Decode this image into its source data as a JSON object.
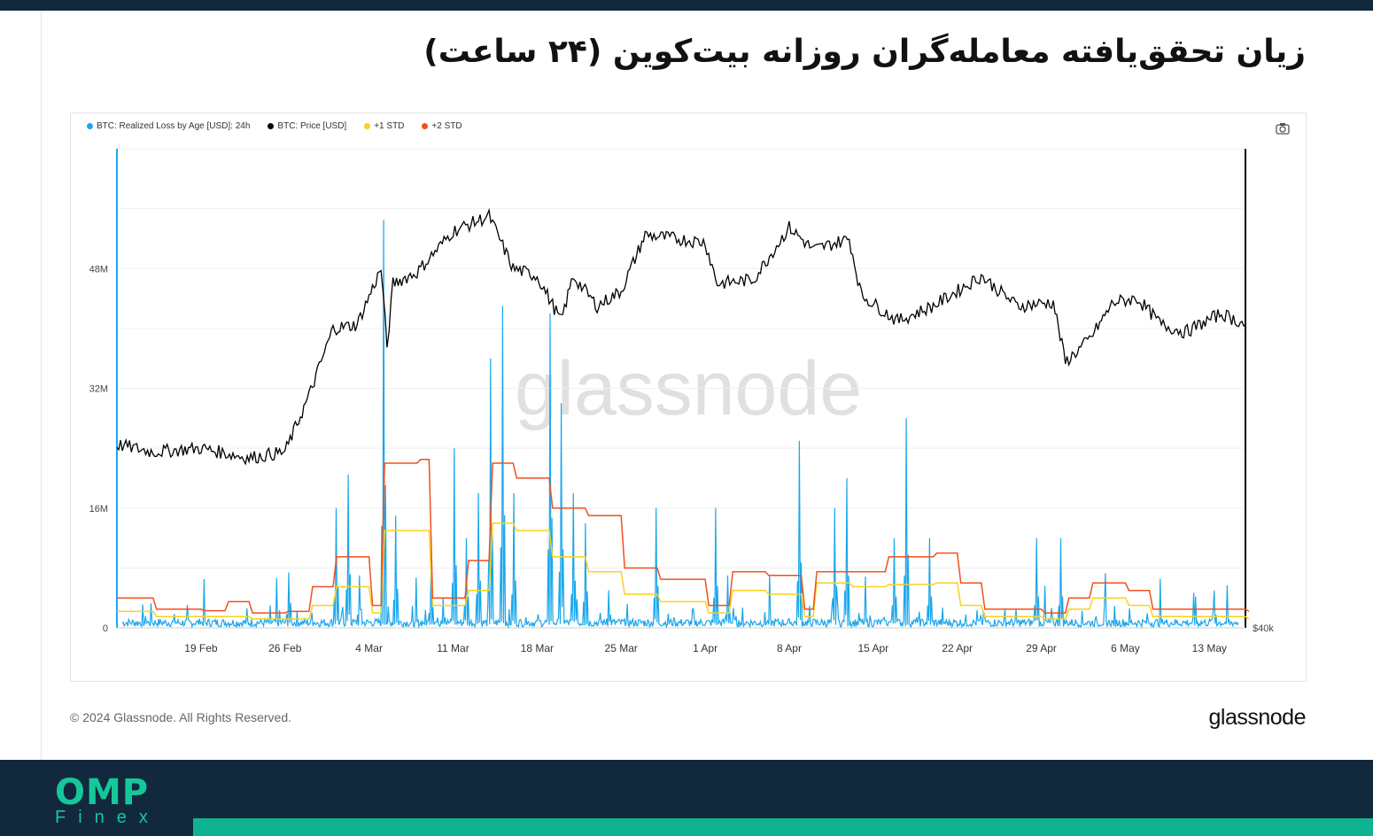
{
  "title": "زیان تحقق‌یافته معامله‌گران روزانه بیت‌کوین (۲۴ ساعت)",
  "copyright": "© 2024 Glassnode. All Rights Reserved.",
  "brand": "glassnode",
  "watermark": "glassnode",
  "logo": {
    "omp": "OMP",
    "finex": "Finex"
  },
  "colors": {
    "loss": "#1aa7ec",
    "price": "#000000",
    "std1": "#f7d21e",
    "std2": "#f0501e",
    "header": "#12293d",
    "accent": "#10b38f"
  },
  "legend": [
    {
      "label": "BTC: Realized Loss by Age [USD]: 24h",
      "color": "#1aa7ec"
    },
    {
      "label": "BTC: Price [USD]",
      "color": "#000000"
    },
    {
      "label": "+1 STD",
      "color": "#f7d21e"
    },
    {
      "label": "+2 STD",
      "color": "#f0501e"
    }
  ],
  "icons": {
    "camera": "camera-icon"
  },
  "chart_data": {
    "type": "line",
    "x_domain": [
      "2024-02-12",
      "2024-05-16"
    ],
    "x_ticks": [
      "19 Feb",
      "26 Feb",
      "4 Mar",
      "11 Mar",
      "18 Mar",
      "25 Mar",
      "1 Apr",
      "8 Apr",
      "15 Apr",
      "22 Apr",
      "29 Apr",
      "6 May",
      "13 May"
    ],
    "y_left": {
      "ticks": [
        "0",
        "16M",
        "32M",
        "48M"
      ],
      "range": [
        0,
        64000000
      ]
    },
    "y_right": {
      "ticks": [
        "$40k"
      ]
    },
    "series": [
      {
        "name": "BTC: Realized Loss by Age [USD]: 24h",
        "type": "spike",
        "baseline": 700000,
        "spikes": [
          {
            "date": "2024-02-26",
            "value": 7400000
          },
          {
            "date": "2024-02-28",
            "value": 2000000
          },
          {
            "date": "2024-03-01",
            "value": 16000000
          },
          {
            "date": "2024-03-02",
            "value": 20500000
          },
          {
            "date": "2024-03-03",
            "value": 7000000
          },
          {
            "date": "2024-03-05",
            "value": 54500000
          },
          {
            "date": "2024-03-06",
            "value": 15000000
          },
          {
            "date": "2024-03-09",
            "value": 8000000
          },
          {
            "date": "2024-03-10",
            "value": 4000000
          },
          {
            "date": "2024-03-11",
            "value": 24000000
          },
          {
            "date": "2024-03-12",
            "value": 12000000
          },
          {
            "date": "2024-03-13",
            "value": 18000000
          },
          {
            "date": "2024-03-14",
            "value": 36000000
          },
          {
            "date": "2024-03-15",
            "value": 43000000
          },
          {
            "date": "2024-03-16",
            "value": 18000000
          },
          {
            "date": "2024-03-19",
            "value": 42000000
          },
          {
            "date": "2024-03-20",
            "value": 30000000
          },
          {
            "date": "2024-03-21",
            "value": 18000000
          },
          {
            "date": "2024-03-22",
            "value": 14000000
          },
          {
            "date": "2024-03-24",
            "value": 5000000
          },
          {
            "date": "2024-03-28",
            "value": 16000000
          },
          {
            "date": "2024-04-02",
            "value": 16000000
          },
          {
            "date": "2024-04-03",
            "value": 7000000
          },
          {
            "date": "2024-04-09",
            "value": 25000000
          },
          {
            "date": "2024-04-12",
            "value": 16000000
          },
          {
            "date": "2024-04-13",
            "value": 20000000
          },
          {
            "date": "2024-04-17",
            "value": 12000000
          },
          {
            "date": "2024-04-18",
            "value": 28000000
          },
          {
            "date": "2024-04-20",
            "value": 12000000
          },
          {
            "date": "2024-04-29",
            "value": 12000000
          },
          {
            "date": "2024-05-01",
            "value": 12000000
          },
          {
            "date": "2024-05-14",
            "value": 5000000
          }
        ]
      },
      {
        "name": "BTC: Price [USD]",
        "axis": "right",
        "points": [
          [
            "2024-02-12",
            24500000
          ],
          [
            "2024-02-15",
            23500000
          ],
          [
            "2024-02-19",
            24000000
          ],
          [
            "2024-02-23",
            22700000
          ],
          [
            "2024-02-26",
            23500000
          ],
          [
            "2024-02-28",
            31000000
          ],
          [
            "2024-03-01",
            40000000
          ],
          [
            "2024-03-03",
            40500000
          ],
          [
            "2024-03-05",
            48000000
          ],
          [
            "2024-03-05T12",
            37500000
          ],
          [
            "2024-03-06",
            46000000
          ],
          [
            "2024-03-08",
            47500000
          ],
          [
            "2024-03-11",
            53000000
          ],
          [
            "2024-03-14",
            55000000
          ],
          [
            "2024-03-16",
            48000000
          ],
          [
            "2024-03-18",
            47000000
          ],
          [
            "2024-03-20",
            41000000
          ],
          [
            "2024-03-21",
            47000000
          ],
          [
            "2024-03-23",
            43000000
          ],
          [
            "2024-03-25",
            45000000
          ],
          [
            "2024-03-27",
            52500000
          ],
          [
            "2024-04-01",
            51500000
          ],
          [
            "2024-04-02",
            46000000
          ],
          [
            "2024-04-05",
            46500000
          ],
          [
            "2024-04-08",
            53500000
          ],
          [
            "2024-04-10",
            50500000
          ],
          [
            "2024-04-13",
            52000000
          ],
          [
            "2024-04-14",
            44500000
          ],
          [
            "2024-04-17",
            41000000
          ],
          [
            "2024-04-20",
            43000000
          ],
          [
            "2024-04-24",
            47000000
          ],
          [
            "2024-04-27",
            43000000
          ],
          [
            "2024-04-30",
            43500000
          ],
          [
            "2024-05-01",
            35500000
          ],
          [
            "2024-05-03",
            38500000
          ],
          [
            "2024-05-05",
            43500000
          ],
          [
            "2024-05-07",
            44000000
          ],
          [
            "2024-05-09",
            40500000
          ],
          [
            "2024-05-11",
            39500000
          ],
          [
            "2024-05-14",
            42000000
          ],
          [
            "2024-05-16",
            40500000
          ]
        ]
      },
      {
        "name": "+1 STD",
        "type": "step",
        "points": [
          [
            "2024-02-12",
            2200000
          ],
          [
            "2024-02-15",
            1500000
          ],
          [
            "2024-02-23",
            1200000
          ],
          [
            "2024-02-28",
            3000000
          ],
          [
            "2024-03-01",
            5500000
          ],
          [
            "2024-03-04",
            2000000
          ],
          [
            "2024-03-05",
            13000000
          ],
          [
            "2024-03-08",
            13000000
          ],
          [
            "2024-03-09",
            3000000
          ],
          [
            "2024-03-12",
            5000000
          ],
          [
            "2024-03-14",
            14000000
          ],
          [
            "2024-03-16",
            13000000
          ],
          [
            "2024-03-19",
            9500000
          ],
          [
            "2024-03-22",
            7500000
          ],
          [
            "2024-03-25",
            4500000
          ],
          [
            "2024-03-28",
            3500000
          ],
          [
            "2024-04-01",
            2000000
          ],
          [
            "2024-04-03",
            5000000
          ],
          [
            "2024-04-06",
            4500000
          ],
          [
            "2024-04-09",
            1500000
          ],
          [
            "2024-04-10",
            6000000
          ],
          [
            "2024-04-13",
            5500000
          ],
          [
            "2024-04-16",
            5800000
          ],
          [
            "2024-04-20",
            6000000
          ],
          [
            "2024-04-22",
            3000000
          ],
          [
            "2024-04-24",
            1500000
          ],
          [
            "2024-04-29",
            1200000
          ],
          [
            "2024-05-01",
            2500000
          ],
          [
            "2024-05-03",
            4000000
          ],
          [
            "2024-05-06",
            3000000
          ],
          [
            "2024-05-08",
            1500000
          ],
          [
            "2024-05-16",
            1200000
          ]
        ]
      },
      {
        "name": "+2 STD",
        "type": "step",
        "points": [
          [
            "2024-02-12",
            4000000
          ],
          [
            "2024-02-15",
            2500000
          ],
          [
            "2024-02-19",
            2300000
          ],
          [
            "2024-02-21",
            3500000
          ],
          [
            "2024-02-23",
            2000000
          ],
          [
            "2024-02-26",
            2200000
          ],
          [
            "2024-02-28",
            5500000
          ],
          [
            "2024-03-01",
            9500000
          ],
          [
            "2024-03-04",
            3000000
          ],
          [
            "2024-03-05",
            22000000
          ],
          [
            "2024-03-08",
            22500000
          ],
          [
            "2024-03-09",
            4000000
          ],
          [
            "2024-03-12",
            9000000
          ],
          [
            "2024-03-14",
            22000000
          ],
          [
            "2024-03-16",
            20000000
          ],
          [
            "2024-03-19",
            16000000
          ],
          [
            "2024-03-22",
            15000000
          ],
          [
            "2024-03-25",
            8000000
          ],
          [
            "2024-03-28",
            6500000
          ],
          [
            "2024-04-01",
            3000000
          ],
          [
            "2024-04-03",
            7500000
          ],
          [
            "2024-04-06",
            7000000
          ],
          [
            "2024-04-09",
            2500000
          ],
          [
            "2024-04-10",
            7500000
          ],
          [
            "2024-04-13",
            7500000
          ],
          [
            "2024-04-16",
            9500000
          ],
          [
            "2024-04-20",
            10000000
          ],
          [
            "2024-04-22",
            6000000
          ],
          [
            "2024-04-24",
            2500000
          ],
          [
            "2024-04-29",
            2000000
          ],
          [
            "2024-05-01",
            4000000
          ],
          [
            "2024-05-03",
            6000000
          ],
          [
            "2024-05-06",
            5000000
          ],
          [
            "2024-05-08",
            2500000
          ],
          [
            "2024-05-16",
            2200000
          ]
        ]
      }
    ],
    "grid": true,
    "legend_position": "top-left"
  }
}
